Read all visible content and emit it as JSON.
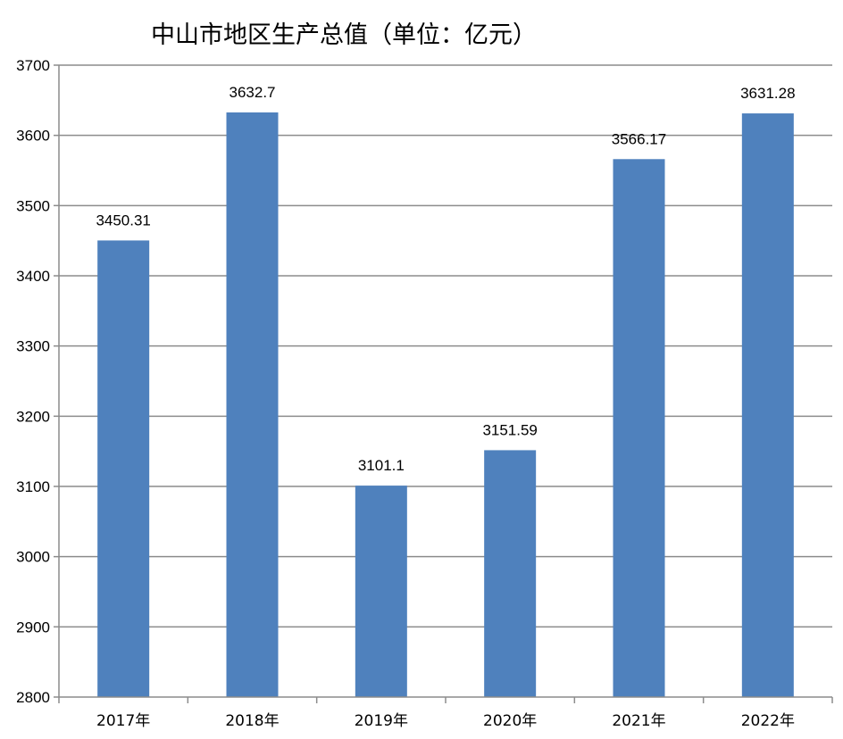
{
  "chart_data": {
    "type": "bar",
    "title": "中山市地区生产总值（单位：亿元）",
    "categories": [
      "2017年",
      "2018年",
      "2019年",
      "2020年",
      "2021年",
      "2022年"
    ],
    "values": [
      3450.31,
      3632.7,
      3101.1,
      3151.59,
      3566.17,
      3631.28
    ],
    "data_labels": [
      "3450.31",
      "3632.7",
      "3101.1",
      "3151.59",
      "3566.17",
      "3631.28"
    ],
    "ylim": [
      2800,
      3700
    ],
    "yticks": [
      "2800",
      "2900",
      "3000",
      "3100",
      "3200",
      "3300",
      "3400",
      "3500",
      "3600",
      "3700"
    ],
    "xlabel": "",
    "ylabel": "",
    "grid": true,
    "legend": "none",
    "bar_color": "#4F81BD",
    "grid_color": "#8C8C8C",
    "axis_color": "#8C8C8C"
  }
}
